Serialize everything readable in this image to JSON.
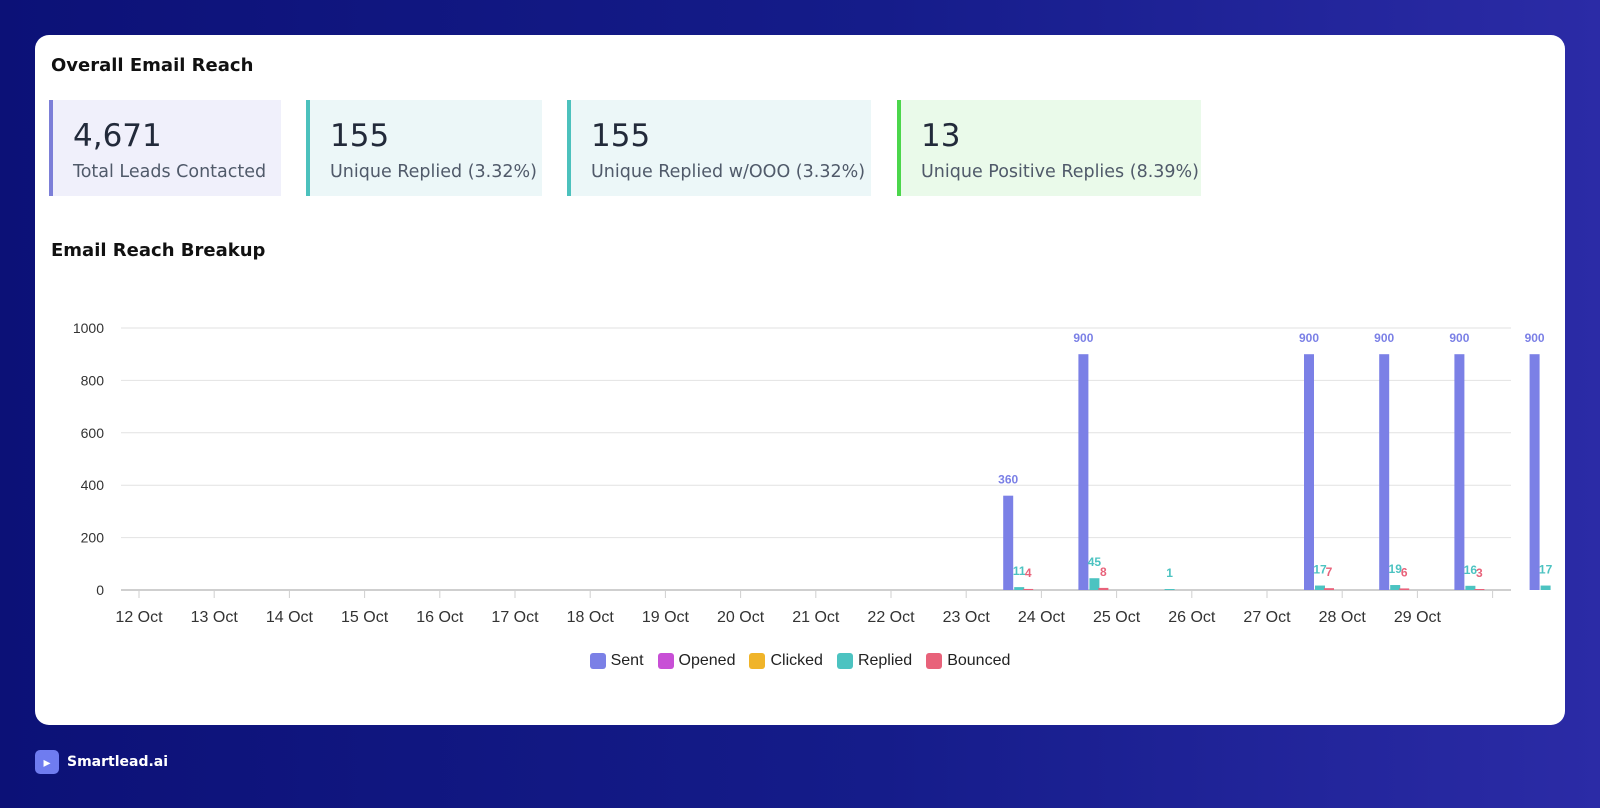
{
  "overview": {
    "title": "Overall Email Reach",
    "stats": [
      {
        "value": "4,671",
        "label": "Total Leads Contacted",
        "accent": "#7c7fd8",
        "bg": "#f0f0fb"
      },
      {
        "value": "155",
        "label": "Unique Replied (3.32%)",
        "accent": "#4cc1bd",
        "bg": "#ecf7f8"
      },
      {
        "value": "155",
        "label": "Unique Replied w/OOO (3.32%)",
        "accent": "#4cc1bd",
        "bg": "#ecf7f8"
      },
      {
        "value": "13",
        "label": "Unique Positive Replies (8.39%)",
        "accent": "#4bd64b",
        "bg": "#eafaea"
      }
    ]
  },
  "breakup": {
    "title": "Email Reach Breakup"
  },
  "chart_data": {
    "type": "bar",
    "categories": [
      "12 Oct",
      "13 Oct",
      "14 Oct",
      "15 Oct",
      "16 Oct",
      "17 Oct",
      "18 Oct",
      "19 Oct",
      "20 Oct",
      "21 Oct",
      "22 Oct",
      "23 Oct",
      "24 Oct",
      "25 Oct",
      "26 Oct",
      "27 Oct",
      "28 Oct",
      "29 Oct",
      ""
    ],
    "ylim": [
      0,
      1000
    ],
    "yticks": [
      0,
      200,
      400,
      600,
      800,
      1000
    ],
    "grid": true,
    "legend_position": "bottom",
    "series": [
      {
        "name": "Sent",
        "color": "#7b80e6",
        "values": [
          0,
          0,
          0,
          0,
          0,
          0,
          0,
          0,
          0,
          0,
          0,
          360,
          900,
          0,
          0,
          900,
          900,
          900,
          900
        ]
      },
      {
        "name": "Opened",
        "color": "#c84fd6",
        "values": [
          0,
          0,
          0,
          0,
          0,
          0,
          0,
          0,
          0,
          0,
          0,
          0,
          0,
          0,
          0,
          0,
          0,
          0,
          0
        ]
      },
      {
        "name": "Clicked",
        "color": "#f0b429",
        "values": [
          0,
          0,
          0,
          0,
          0,
          0,
          0,
          0,
          0,
          0,
          0,
          0,
          0,
          0,
          0,
          0,
          0,
          0,
          0
        ]
      },
      {
        "name": "Replied",
        "color": "#4cc3c1",
        "values": [
          0,
          0,
          0,
          0,
          0,
          0,
          0,
          0,
          0,
          0,
          0,
          11,
          45,
          1,
          0,
          17,
          19,
          16,
          17
        ]
      },
      {
        "name": "Bounced",
        "color": "#e8627a",
        "values": [
          0,
          0,
          0,
          0,
          0,
          0,
          0,
          0,
          0,
          0,
          0,
          4,
          8,
          0,
          0,
          7,
          6,
          3,
          0
        ]
      }
    ]
  },
  "brand": {
    "name": "Smartlead.ai"
  }
}
